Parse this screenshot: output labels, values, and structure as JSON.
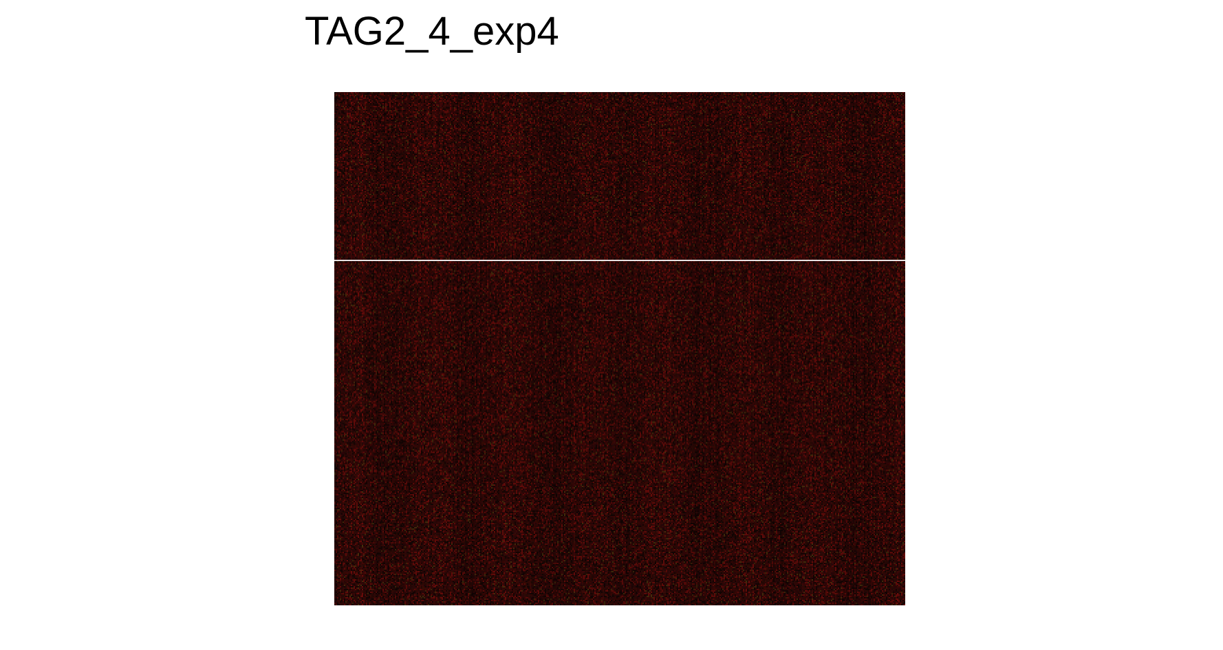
{
  "title": "TAG2_4_exp4",
  "image": {
    "base_color": "#2a0605",
    "grain_color_red": "#5a0a08",
    "grain_color_dark": "#100302",
    "grain_color_olive": "#3a2a0a",
    "divider_color": "#e8e2e2"
  }
}
